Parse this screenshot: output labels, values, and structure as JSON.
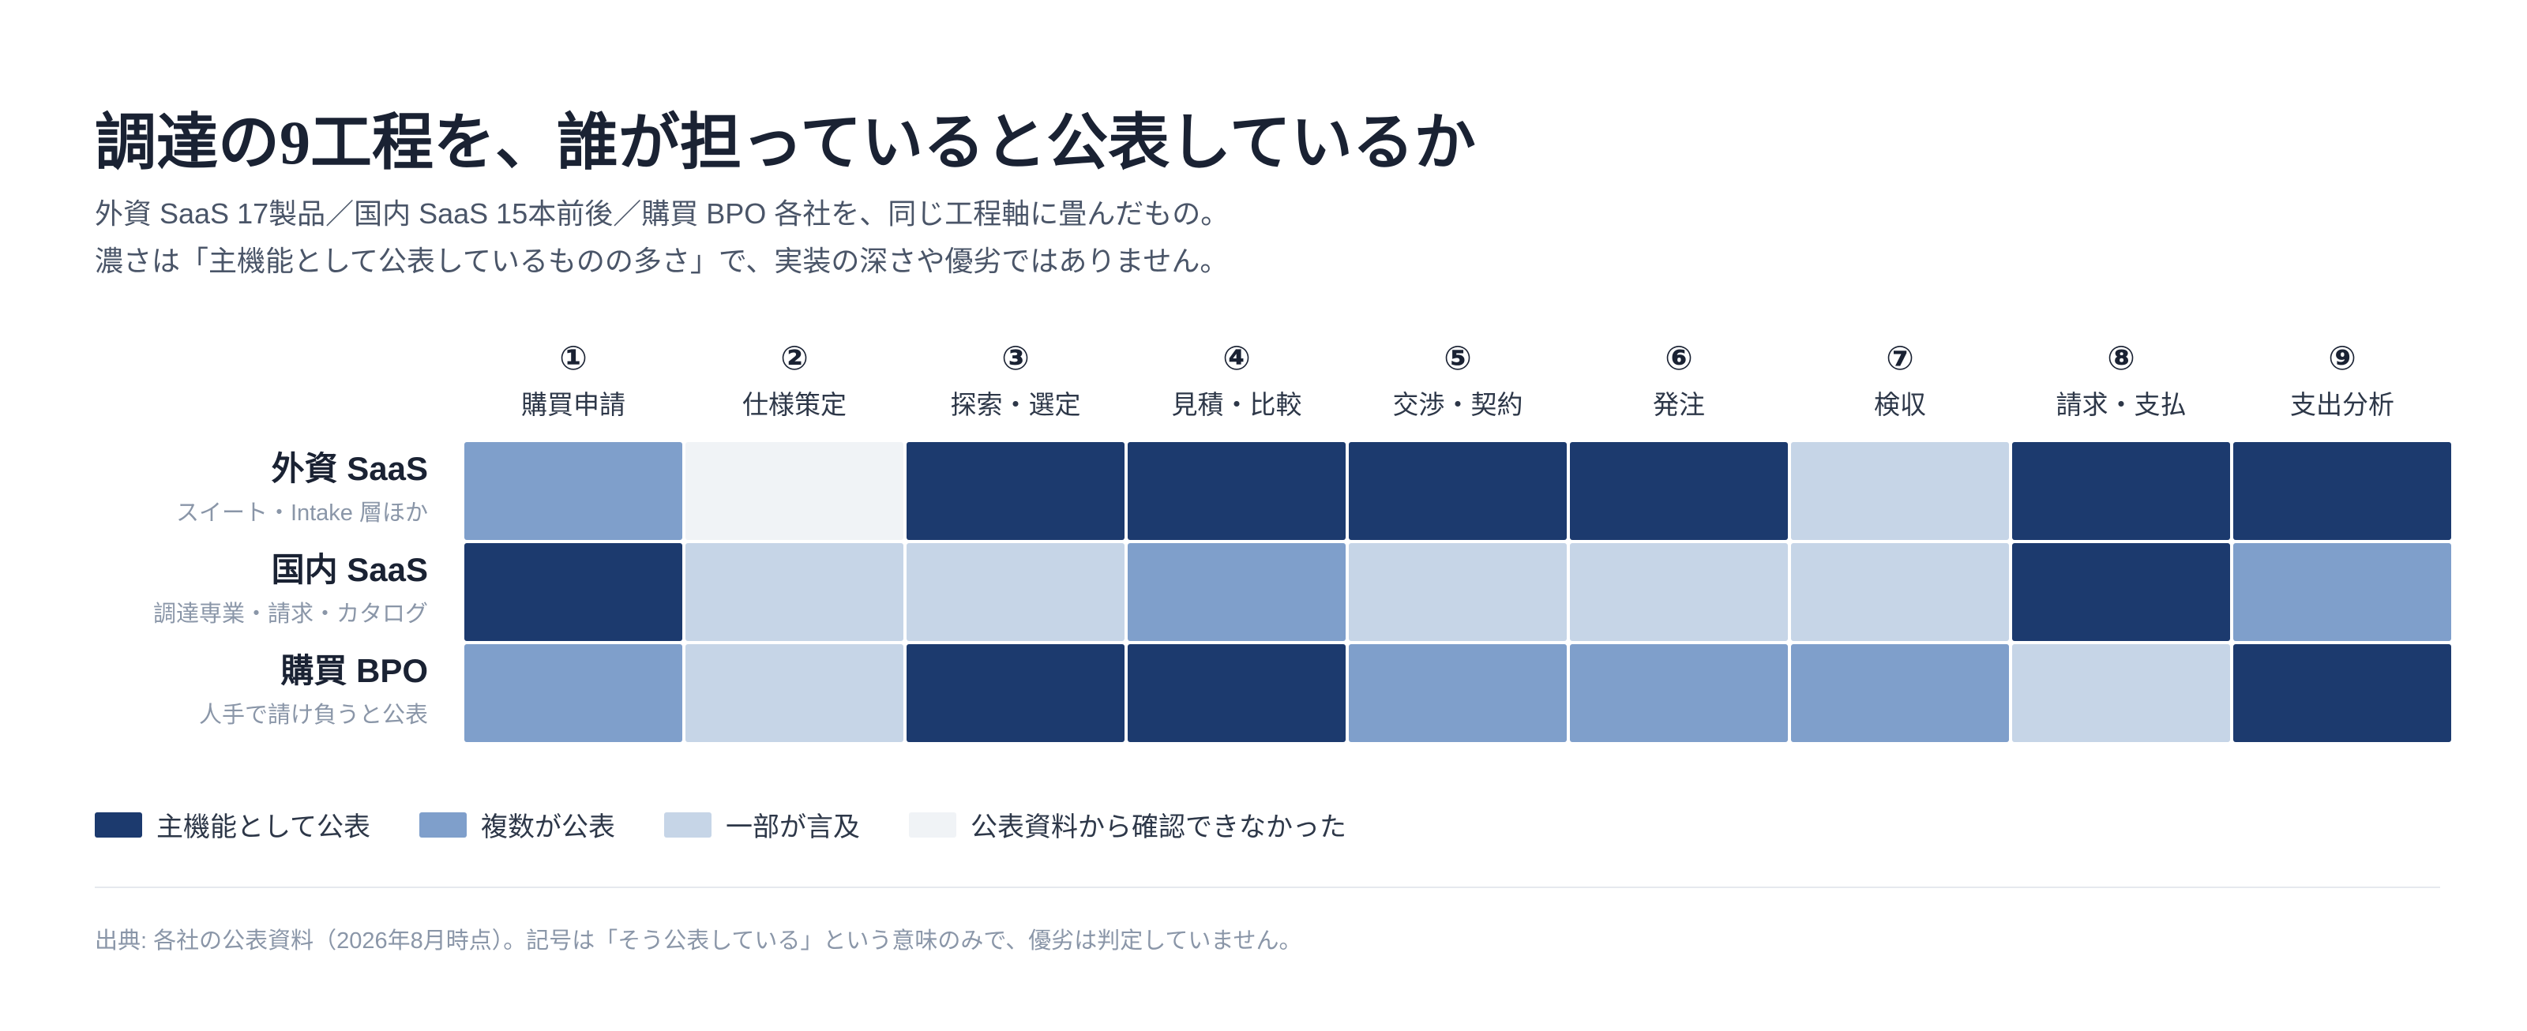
{
  "header": {
    "title": "調達の9工程を、誰が担っていると公表しているか",
    "subtitle_1": "外資 SaaS 17製品／国内 SaaS 15本前後／購買 BPO 各社を、同じ工程軸に畳んだもの。",
    "subtitle_2": "濃さは「主機能として公表しているものの多さ」で、実装の深さや優劣ではありません。"
  },
  "chart_data": {
    "type": "heatmap",
    "columns": [
      {
        "num": "①",
        "label": "購買申請"
      },
      {
        "num": "②",
        "label": "仕様策定"
      },
      {
        "num": "③",
        "label": "探索・選定"
      },
      {
        "num": "④",
        "label": "見積・比較"
      },
      {
        "num": "⑤",
        "label": "交渉・契約"
      },
      {
        "num": "⑥",
        "label": "発注"
      },
      {
        "num": "⑦",
        "label": "検収"
      },
      {
        "num": "⑧",
        "label": "請求・支払"
      },
      {
        "num": "⑨",
        "label": "支出分析"
      }
    ],
    "rows": [
      {
        "name": "外資 SaaS",
        "desc": "スイート・Intake 層ほか",
        "levels": [
          2,
          0,
          3,
          3,
          3,
          3,
          1,
          3,
          3
        ]
      },
      {
        "name": "国内 SaaS",
        "desc": "調達専業・請求・カタログ",
        "levels": [
          3,
          1,
          1,
          2,
          1,
          1,
          1,
          3,
          2
        ]
      },
      {
        "name": "購買 BPO",
        "desc": "人手で請け負うと公表",
        "levels": [
          2,
          1,
          3,
          3,
          2,
          2,
          2,
          1,
          3
        ]
      }
    ],
    "level_colors": [
      "#f0f3f6",
      "#c6d5e7",
      "#7f9fcb",
      "#1c3a6e"
    ],
    "legend": [
      {
        "level": 3,
        "label": "主機能として公表"
      },
      {
        "level": 2,
        "label": "複数が公表"
      },
      {
        "level": 1,
        "label": "一部が言及"
      },
      {
        "level": 0,
        "label": "公表資料から確認できなかった"
      }
    ]
  },
  "footer": {
    "source": "出典: 各社の公表資料（2026年8月時点）。記号は「そう公表している」という意味のみで、優劣は判定していません。"
  }
}
